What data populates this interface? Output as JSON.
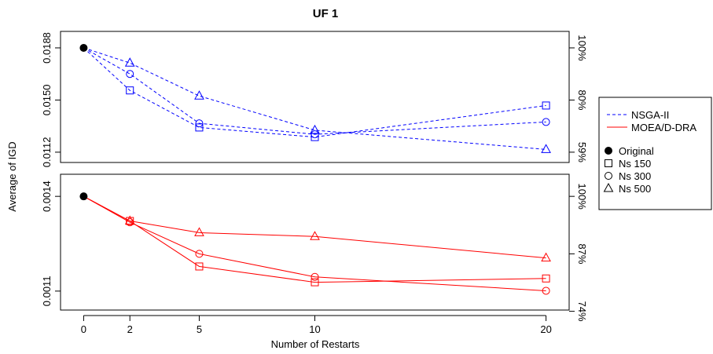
{
  "chart_data": {
    "type": "line",
    "title": "UF 1",
    "xlabel": "Number of Restarts",
    "ylabel": "Average of IGD",
    "x": [
      0,
      2,
      5,
      10,
      20
    ],
    "x_ticks": [
      "0",
      "2",
      "5",
      "10",
      "20"
    ],
    "legend": {
      "algorithms": [
        {
          "name": "NSGA-II",
          "color": "#0000ff",
          "style": "dashed"
        },
        {
          "name": "MOEA/D-DRA",
          "color": "#ff0000",
          "style": "solid"
        }
      ],
      "markers": [
        {
          "name": "Original",
          "shape": "filled-circle"
        },
        {
          "name": "Ns 150",
          "shape": "square"
        },
        {
          "name": "Ns 300",
          "shape": "circle"
        },
        {
          "name": "Ns 500",
          "shape": "triangle"
        }
      ],
      "placement": "right"
    },
    "panels": [
      {
        "algorithm": "NSGA-II",
        "color": "#0000ff",
        "ylim": [
          0.01045,
          0.02
        ],
        "y_ticks": [
          0.0112,
          0.015,
          0.0188
        ],
        "y_tick_labels": [
          "0.0112",
          "0.0150",
          "0.0188"
        ],
        "y2_ticks": [
          0.0112,
          0.015,
          0.0188
        ],
        "y2_tick_labels": [
          "59%",
          "80%",
          "100%"
        ],
        "original": 0.0188,
        "series": [
          {
            "name": "Ns 150",
            "marker": "square",
            "values": [
              0.0188,
              0.0157,
              0.013,
              0.0123,
              0.0146
            ]
          },
          {
            "name": "Ns 300",
            "marker": "circle",
            "values": [
              0.0188,
              0.0169,
              0.0133,
              0.0125,
              0.0134
            ]
          },
          {
            "name": "Ns 500",
            "marker": "triangle",
            "values": [
              0.0188,
              0.0177,
              0.0153,
              0.0128,
              0.0114
            ]
          }
        ]
      },
      {
        "algorithm": "MOEA/D-DRA",
        "color": "#ff0000",
        "ylim": [
          0.00104,
          0.00147
        ],
        "y_ticks": [
          0.0011,
          0.0014
        ],
        "y_tick_labels": [
          "0.0011",
          "0.0014"
        ],
        "y2_ticks": [
          0.0014,
          0.001218,
          0.001036
        ],
        "y2_tick_labels": [
          "100%",
          "87%",
          "74%"
        ],
        "original": 0.0014,
        "series": [
          {
            "name": "Ns 150",
            "marker": "square",
            "values": [
              0.0014,
              0.001322,
              0.001178,
              0.001128,
              0.00114
            ]
          },
          {
            "name": "Ns 300",
            "marker": "circle",
            "values": [
              0.0014,
              0.001318,
              0.001218,
              0.001145,
              0.001101
            ]
          },
          {
            "name": "Ns 500",
            "marker": "triangle",
            "values": [
              0.0014,
              0.001322,
              0.001285,
              0.001273,
              0.001205
            ]
          }
        ]
      }
    ]
  }
}
